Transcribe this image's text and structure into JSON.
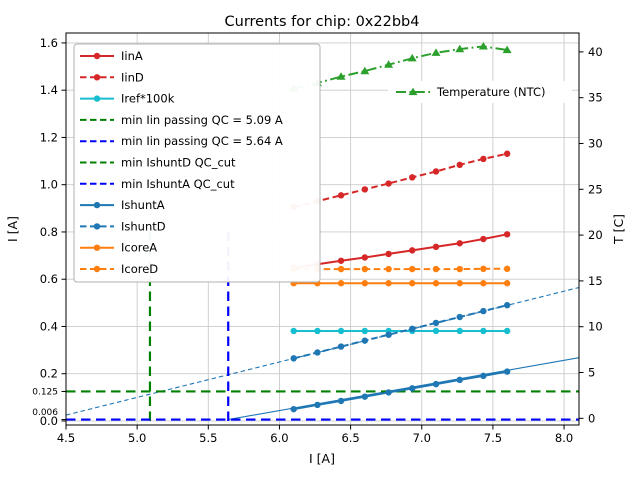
{
  "chart_data": {
    "type": "line",
    "title": "Currents for chip: 0x22bb4",
    "xlabel": "I [A]",
    "ylabel_left": "I [A]",
    "ylabel_right": "T [C]",
    "xlim": [
      4.5,
      8.105
    ],
    "ylim_left": [
      -0.017,
      1.642
    ],
    "ylim_right": [
      -0.73,
      42.06
    ],
    "grid": true,
    "xticks": [
      "4.5",
      "5.0",
      "5.5",
      "6.0",
      "6.5",
      "7.0",
      "7.5",
      "8.0"
    ],
    "yticks_left": [
      "0.0",
      "0.2",
      "0.4",
      "0.6",
      "0.8",
      "1.0",
      "1.2",
      "1.4",
      "1.6"
    ],
    "yticks_left_extra": [
      "0.006",
      "0.125"
    ],
    "yticks_right": [
      "0",
      "5",
      "10",
      "15",
      "20",
      "25",
      "30",
      "35",
      "40"
    ],
    "x": [
      6.1,
      6.267,
      6.433,
      6.6,
      6.767,
      6.933,
      7.1,
      7.267,
      7.433,
      7.6
    ],
    "series": [
      {
        "name": "IinA",
        "axis": "left",
        "color": "#d62728",
        "line": "solid",
        "marker": "circle",
        "values": [
          0.648,
          0.663,
          0.678,
          0.692,
          0.707,
          0.722,
          0.737,
          0.752,
          0.77,
          0.79
        ]
      },
      {
        "name": "IinD",
        "axis": "left",
        "color": "#d62728",
        "line": "dashed",
        "marker": "circle",
        "values": [
          0.905,
          0.93,
          0.955,
          0.98,
          1.005,
          1.031,
          1.056,
          1.084,
          1.109,
          1.131
        ]
      },
      {
        "name": "Iref*100k",
        "axis": "left",
        "color": "#17becf",
        "line": "solid",
        "marker": "circle",
        "values": [
          0.381,
          0.381,
          0.381,
          0.381,
          0.381,
          0.381,
          0.381,
          0.381,
          0.381,
          0.381
        ]
      },
      {
        "name": "IshuntA",
        "axis": "left",
        "color": "#1f77b4",
        "line": "solid",
        "marker": "circle",
        "values": [
          0.05,
          0.068,
          0.085,
          0.103,
          0.121,
          0.138,
          0.156,
          0.174,
          0.191,
          0.209
        ]
      },
      {
        "name": "IshuntD",
        "axis": "left",
        "color": "#1f77b4",
        "line": "dashed",
        "marker": "circle",
        "values": [
          0.265,
          0.29,
          0.315,
          0.34,
          0.365,
          0.39,
          0.415,
          0.44,
          0.465,
          0.49
        ]
      },
      {
        "name": "IcoreA",
        "axis": "left",
        "color": "#ff7f0e",
        "line": "solid",
        "marker": "circle",
        "values": [
          0.583,
          0.583,
          0.583,
          0.583,
          0.583,
          0.583,
          0.583,
          0.583,
          0.583,
          0.583
        ]
      },
      {
        "name": "IcoreD",
        "axis": "left",
        "color": "#ff7f0e",
        "line": "dashed",
        "marker": "circle",
        "values": [
          0.643,
          0.643,
          0.643,
          0.643,
          0.643,
          0.643,
          0.643,
          0.643,
          0.644,
          0.644
        ]
      },
      {
        "name": "Temperature (NTC)",
        "axis": "right",
        "color": "#2ca02c",
        "line": "dashdot",
        "marker": "triangle",
        "values": [
          36.0,
          36.6,
          37.3,
          37.9,
          38.6,
          39.3,
          39.9,
          40.3,
          40.6,
          40.2
        ]
      }
    ],
    "fit_lines": [
      {
        "name": "IshuntA fit",
        "color": "#1f77b4",
        "line": "solid",
        "x": [
          5.64,
          8.105
        ],
        "y": [
          0.006,
          0.268
        ]
      },
      {
        "name": "IshuntD fit",
        "color": "#1f77b4",
        "line": "dashed",
        "x": [
          4.5,
          8.105
        ],
        "y": [
          0.025,
          0.565
        ]
      }
    ],
    "qc_lines": [
      {
        "name": "min Iin passing QC = 5.09 A",
        "orientation": "vertical",
        "color": "#008000",
        "x": 5.09,
        "y0": 0.0,
        "y1": 0.8
      },
      {
        "name": "min Iin passing QC = 5.64 A",
        "orientation": "vertical",
        "color": "#0000ff",
        "x": 5.64,
        "y0": 0.0,
        "y1": 0.8
      },
      {
        "name": "min IshuntD QC_cut",
        "orientation": "horizontal",
        "color": "#008000",
        "y": 0.125
      },
      {
        "name": "min IshuntA QC_cut",
        "orientation": "horizontal",
        "color": "#0000ff",
        "y": 0.006
      }
    ],
    "legend_main": {
      "position": "upper left",
      "entries": [
        {
          "label": "IinA",
          "color": "#d62728",
          "line": "solid",
          "marker": "circle"
        },
        {
          "label": "IinD",
          "color": "#d62728",
          "line": "dashed",
          "marker": "circle"
        },
        {
          "label": "Iref*100k",
          "color": "#17becf",
          "line": "solid",
          "marker": "circle"
        },
        {
          "label": "min Iin passing QC = 5.09 A",
          "color": "#008000",
          "line": "dashed",
          "marker": "none"
        },
        {
          "label": "min Iin passing QC = 5.64 A",
          "color": "#0000ff",
          "line": "dashed",
          "marker": "none"
        },
        {
          "label": "min IshuntD QC_cut",
          "color": "#008000",
          "line": "dashed",
          "marker": "none"
        },
        {
          "label": "min IshuntA QC_cut",
          "color": "#0000ff",
          "line": "dashed",
          "marker": "none"
        },
        {
          "label": "IshuntA",
          "color": "#1f77b4",
          "line": "solid",
          "marker": "circle"
        },
        {
          "label": "IshuntD",
          "color": "#1f77b4",
          "line": "dashed",
          "marker": "circle"
        },
        {
          "label": "IcoreA",
          "color": "#ff7f0e",
          "line": "solid",
          "marker": "circle"
        },
        {
          "label": "IcoreD",
          "color": "#ff7f0e",
          "line": "dashed",
          "marker": "circle"
        }
      ]
    },
    "legend_temp": {
      "label": "Temperature (NTC)",
      "color": "#2ca02c",
      "line": "dashdot",
      "marker": "triangle"
    }
  }
}
